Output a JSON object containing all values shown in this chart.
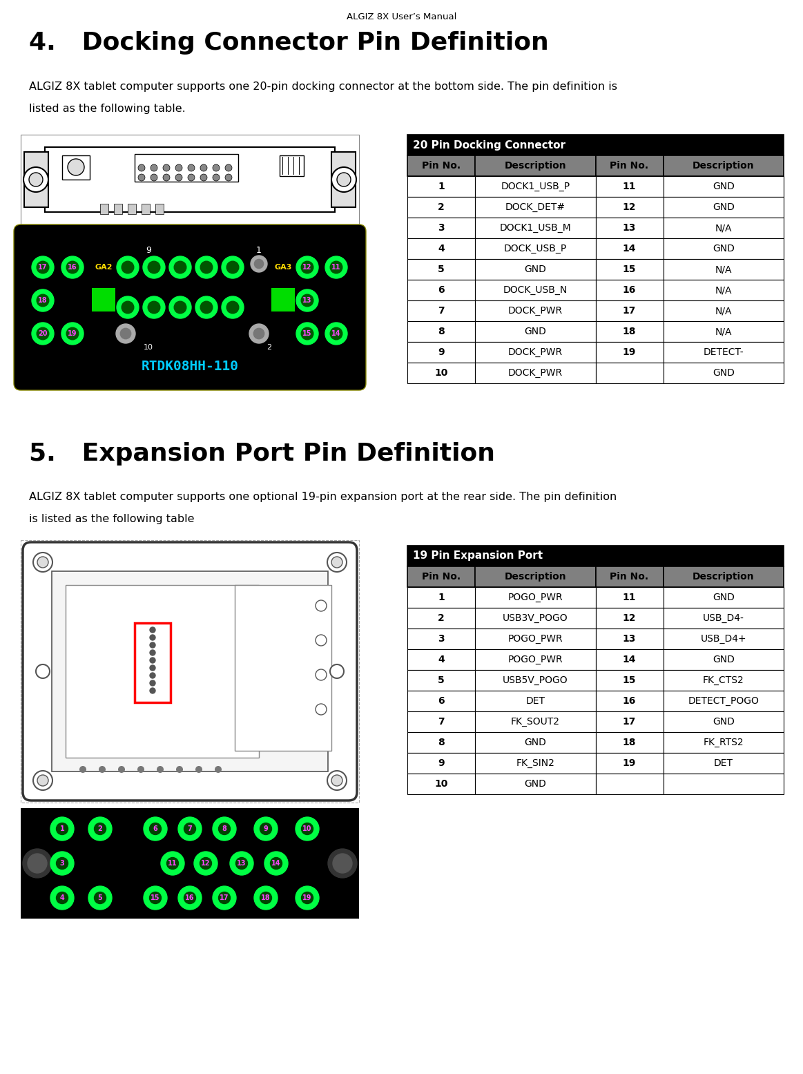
{
  "page_title": "ALGIZ 8X User’s Manual",
  "section4_title": "4.   Docking Connector Pin Definition",
  "section4_body1": "ALGIZ 8X tablet computer supports one 20-pin docking connector at the bottom side. The pin definition is",
  "section4_body2": "listed as the following table.",
  "table1_header_title": "20 Pin Docking Connector",
  "table1_col_headers": [
    "Pin No.",
    "Description",
    "Pin No.",
    "Description"
  ],
  "table1_data": [
    [
      "1",
      "DOCK1_USB_P",
      "11",
      "GND"
    ],
    [
      "2",
      "DOCK_DET#",
      "12",
      "GND"
    ],
    [
      "3",
      "DOCK1_USB_M",
      "13",
      "N/A"
    ],
    [
      "4",
      "DOCK_USB_P",
      "14",
      "GND"
    ],
    [
      "5",
      "GND",
      "15",
      "N/A"
    ],
    [
      "6",
      "DOCK_USB_N",
      "16",
      "N/A"
    ],
    [
      "7",
      "DOCK_PWR",
      "17",
      "N/A"
    ],
    [
      "8",
      "GND",
      "18",
      "N/A"
    ],
    [
      "9",
      "DOCK_PWR",
      "19",
      "DETECT-"
    ],
    [
      "10",
      "DOCK_PWR",
      "",
      "GND"
    ]
  ],
  "section5_title": "5.   Expansion Port Pin Definition",
  "section5_body1": "ALGIZ 8X tablet computer supports one optional 19-pin expansion port at the rear side. The pin definition",
  "section5_body2": "is listed as the following table",
  "table2_header_title": "19 Pin Expansion Port",
  "table2_col_headers": [
    "Pin No.",
    "Description",
    "Pin No.",
    "Description"
  ],
  "table2_data": [
    [
      "1",
      "POGO_PWR",
      "11",
      "GND"
    ],
    [
      "2",
      "USB3V_POGO",
      "12",
      "USB_D4-"
    ],
    [
      "3",
      "POGO_PWR",
      "13",
      "USB_D4+"
    ],
    [
      "4",
      "POGO_PWR",
      "14",
      "GND"
    ],
    [
      "5",
      "USB5V_POGO",
      "15",
      "FK_CTS2"
    ],
    [
      "6",
      "DET",
      "16",
      "DETECT_POGO"
    ],
    [
      "7",
      "FK_SOUT2",
      "17",
      "GND"
    ],
    [
      "8",
      "GND",
      "18",
      "FK_RTS2"
    ],
    [
      "9",
      "FK_SIN2",
      "19",
      "DET"
    ],
    [
      "10",
      "GND",
      "",
      ""
    ]
  ],
  "header_bg": "#000000",
  "header_fg": "#ffffff",
  "subheader_bg": "#808080",
  "subheader_fg": "#000000",
  "border_color": "#000000",
  "pcb_bg": "#000000",
  "pcb_green": "#00ff44",
  "pcb_gray": "#aaaaaa",
  "pcb_cyan": "#00ccff",
  "pcb_yellow": "#ffdd00",
  "pcb_magenta": "#ff44ff",
  "pcb_green_sq": "#00dd00"
}
